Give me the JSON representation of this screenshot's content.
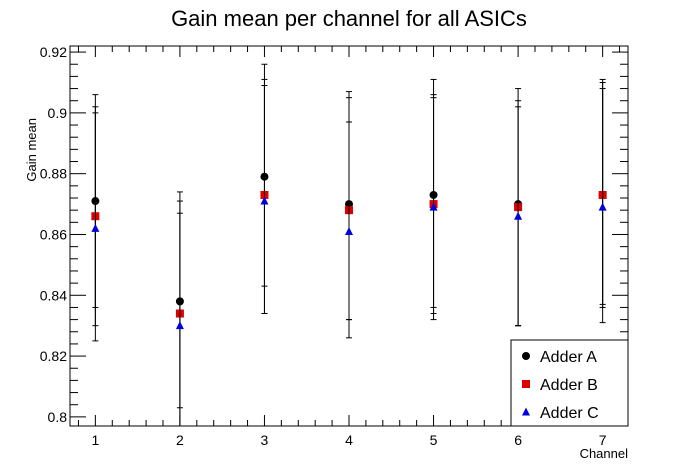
{
  "chart_data": {
    "type": "scatter",
    "title": "Gain mean per channel for all ASICs",
    "xlabel": "Channel",
    "ylabel": "Gain mean",
    "xlim": [
      0.7,
      7.3
    ],
    "ylim": [
      0.797,
      0.922
    ],
    "x_ticks": [
      "1",
      "2",
      "3",
      "4",
      "5",
      "6",
      "7"
    ],
    "y_ticks": [
      "0.8",
      "0.82",
      "0.84",
      "0.86",
      "0.88",
      "0.9",
      "0.92"
    ],
    "legend_position": "bottom-right",
    "series": [
      {
        "name": "Adder A",
        "marker": "circle",
        "color": "#000000",
        "points": [
          {
            "x": 1,
            "y": 0.871,
            "ylow": 0.836,
            "yhigh": 0.906
          },
          {
            "x": 2,
            "y": 0.838,
            "ylow": 0.803,
            "yhigh": 0.874
          },
          {
            "x": 3,
            "y": 0.879,
            "ylow": 0.843,
            "yhigh": 0.916
          },
          {
            "x": 4,
            "y": 0.87,
            "ylow": 0.832,
            "yhigh": 0.907
          },
          {
            "x": 5,
            "y": 0.873,
            "ylow": 0.836,
            "yhigh": 0.911
          },
          {
            "x": 6,
            "y": 0.87,
            "ylow": 0.83,
            "yhigh": 0.908
          },
          {
            "x": 7,
            "y": 0.873,
            "ylow": 0.837,
            "yhigh": 0.911
          }
        ]
      },
      {
        "name": "Adder B",
        "marker": "square",
        "color": "#dd0000",
        "points": [
          {
            "x": 1,
            "y": 0.866,
            "ylow": 0.83,
            "yhigh": 0.902
          },
          {
            "x": 2,
            "y": 0.834,
            "ylow": 0.797,
            "yhigh": 0.871
          },
          {
            "x": 3,
            "y": 0.873,
            "ylow": 0.834,
            "yhigh": 0.911
          },
          {
            "x": 4,
            "y": 0.868,
            "ylow": 0.832,
            "yhigh": 0.905
          },
          {
            "x": 5,
            "y": 0.87,
            "ylow": 0.834,
            "yhigh": 0.906
          },
          {
            "x": 6,
            "y": 0.869,
            "ylow": 0.83,
            "yhigh": 0.904
          },
          {
            "x": 7,
            "y": 0.873,
            "ylow": 0.836,
            "yhigh": 0.91
          }
        ]
      },
      {
        "name": "Adder C",
        "marker": "triangle",
        "color": "#0000dd",
        "points": [
          {
            "x": 1,
            "y": 0.862,
            "ylow": 0.825,
            "yhigh": 0.9
          },
          {
            "x": 2,
            "y": 0.83,
            "ylow": 0.797,
            "yhigh": 0.867
          },
          {
            "x": 3,
            "y": 0.871,
            "ylow": 0.834,
            "yhigh": 0.909
          },
          {
            "x": 4,
            "y": 0.861,
            "ylow": 0.826,
            "yhigh": 0.897
          },
          {
            "x": 5,
            "y": 0.869,
            "ylow": 0.832,
            "yhigh": 0.905
          },
          {
            "x": 6,
            "y": 0.866,
            "ylow": 0.83,
            "yhigh": 0.902
          },
          {
            "x": 7,
            "y": 0.869,
            "ylow": 0.831,
            "yhigh": 0.908
          }
        ]
      }
    ]
  }
}
